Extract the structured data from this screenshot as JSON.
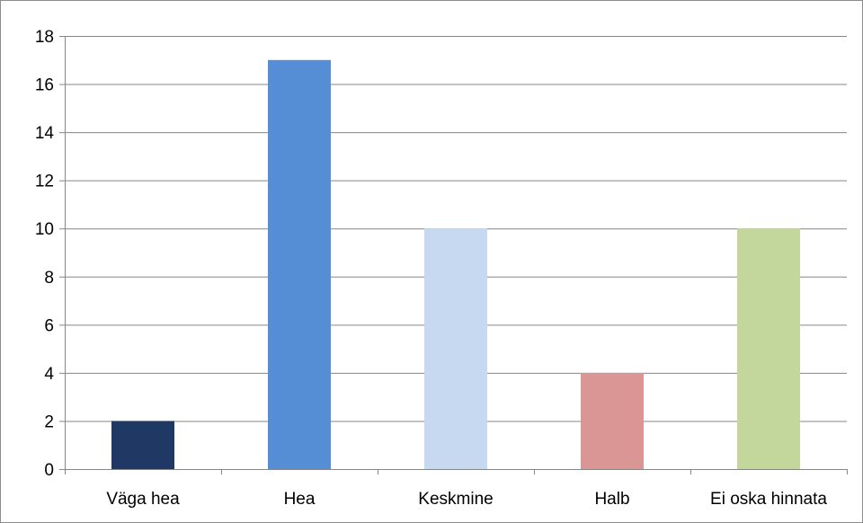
{
  "chart_data": {
    "type": "bar",
    "title": "",
    "xlabel": "",
    "ylabel": "",
    "categories": [
      "Väga hea",
      "Hea",
      "Keskmine",
      "Halb",
      "Ei oska hinnata"
    ],
    "values": [
      2,
      17,
      10,
      4,
      10
    ],
    "colors": [
      "#1f3864",
      "#558ed5",
      "#c6d9f1",
      "#d99694",
      "#c3d69b"
    ],
    "ylim": [
      0,
      18
    ],
    "yticks": [
      0,
      2,
      4,
      6,
      8,
      10,
      12,
      14,
      16,
      18
    ],
    "grid": true,
    "legend": "none"
  }
}
